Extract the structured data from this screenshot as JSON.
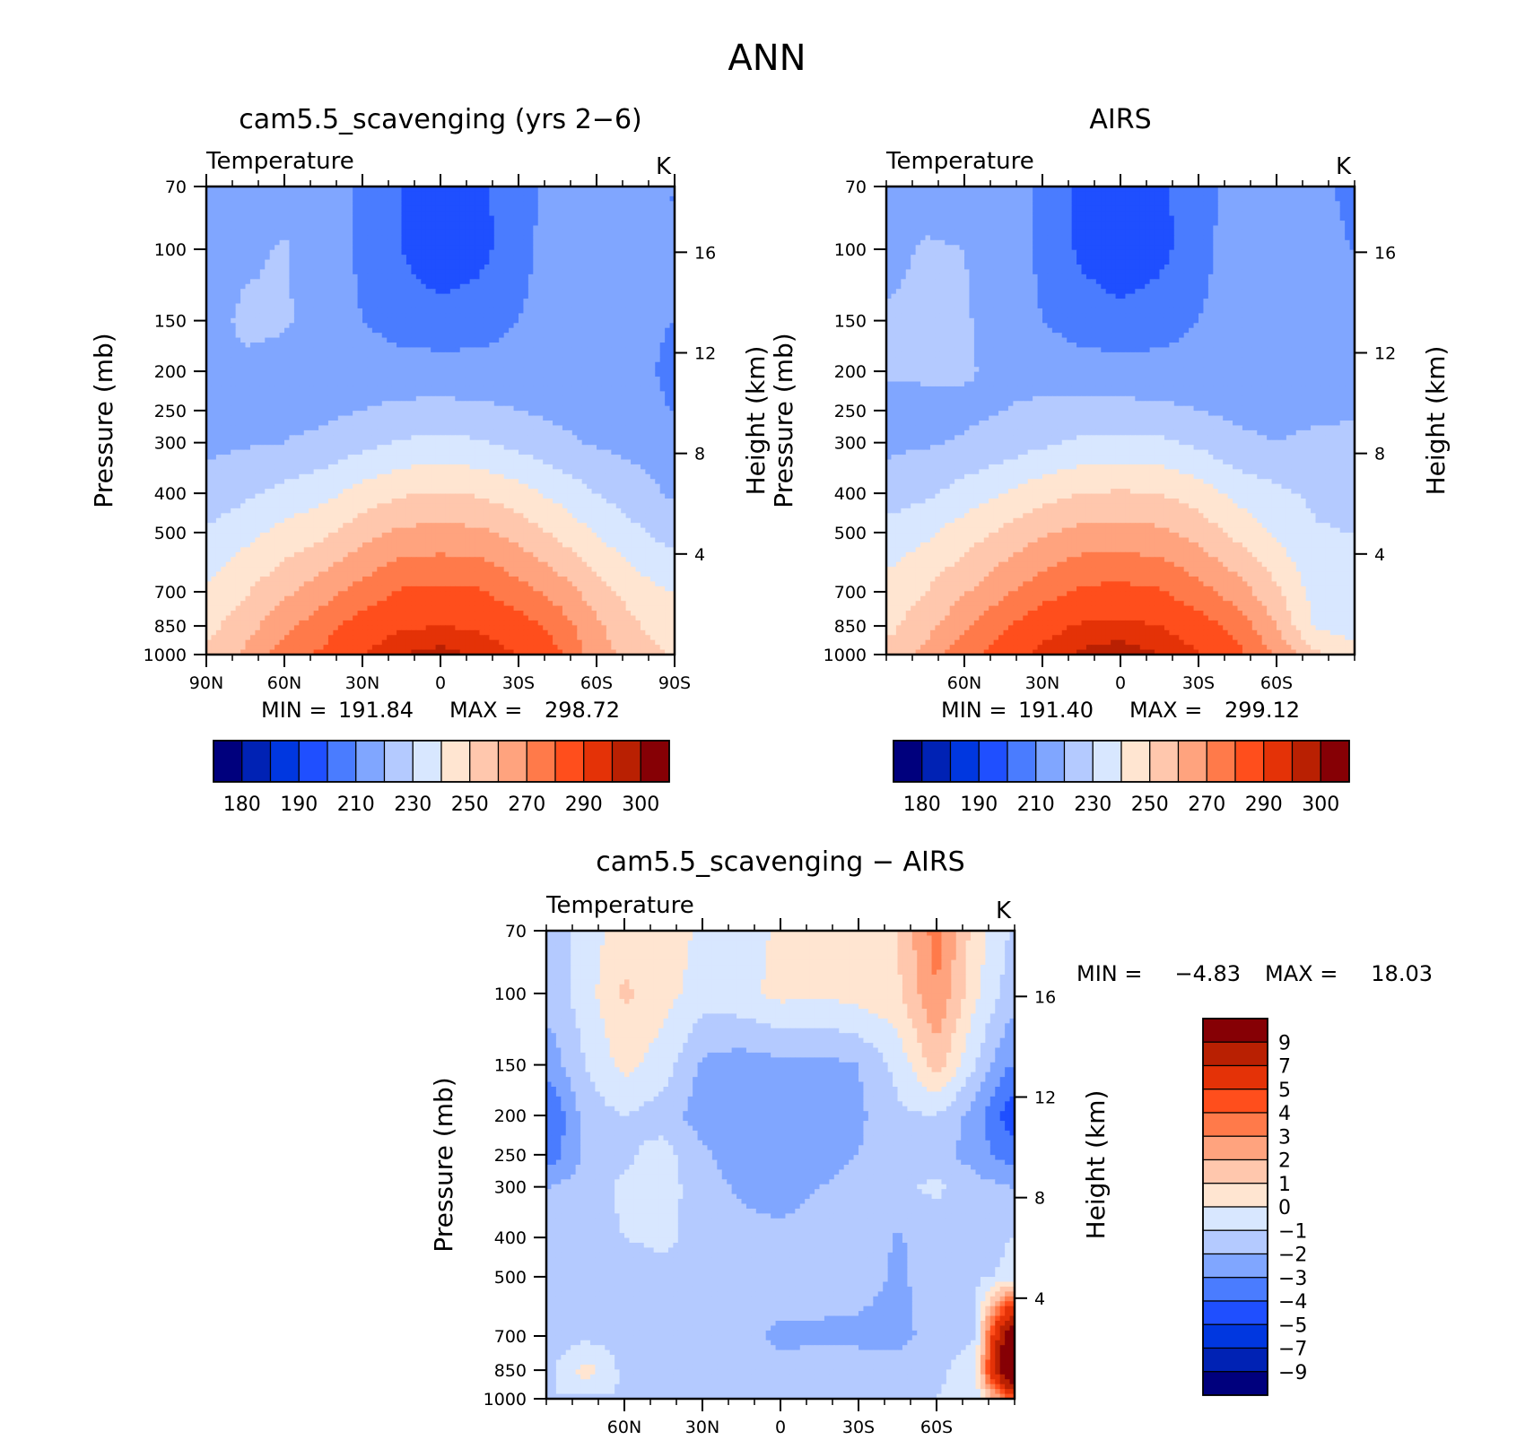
{
  "figure": {
    "title": "ANN"
  },
  "chart_data": [
    {
      "type": "heatmap",
      "title": "cam5.5_scavenging (yrs 2−6)",
      "variable": "Temperature",
      "units": "K",
      "ylabel": "Pressure (mb)",
      "y2label": "Height (km)",
      "pressure_ticks": [
        "70",
        "100",
        "150",
        "200",
        "250",
        "300",
        "400",
        "500",
        "700",
        "850",
        "1000"
      ],
      "height_ticks": [
        "16",
        "12",
        "8",
        "4"
      ],
      "lat_ticks": [
        "90N",
        "60N",
        "30N",
        "0",
        "30S",
        "60S",
        "90S"
      ],
      "lat_range": [
        90,
        -90
      ],
      "stats": {
        "min_label": "MIN =",
        "min": "191.84",
        "max_label": "MAX =",
        "max": "298.72"
      },
      "colorbar_levels": [
        175,
        180,
        185,
        190,
        200,
        210,
        220,
        230,
        240,
        250,
        260,
        270,
        280,
        290,
        295,
        300
      ],
      "colorbar_labels": [
        "180",
        "190",
        "210",
        "230",
        "250",
        "270",
        "290",
        "300"
      ],
      "field": {
        "lats": [
          88,
          75,
          60,
          45,
          30,
          15,
          0,
          -15,
          -30,
          -45,
          -60,
          -75,
          -88
        ],
        "levels": [
          70,
          100,
          150,
          200,
          250,
          300,
          400,
          500,
          700,
          850,
          1000
        ],
        "values": [
          [
            215,
            215,
            215,
            215,
            208,
            200,
            196,
            198,
            205,
            215,
            216,
            216,
            210
          ],
          [
            216,
            218,
            221,
            215,
            208,
            200,
            193,
            197,
            206,
            216,
            219,
            215,
            210
          ],
          [
            217,
            222,
            221,
            216,
            210,
            205,
            204,
            205,
            210,
            215,
            218,
            214,
            210
          ],
          [
            217,
            218,
            217,
            217,
            216,
            215,
            214,
            214,
            215,
            216,
            216,
            213,
            208
          ],
          [
            217,
            217,
            218,
            218,
            220,
            222,
            223,
            222,
            220,
            218,
            217,
            214,
            210
          ],
          [
            218,
            219,
            220,
            222,
            227,
            231,
            233,
            231,
            227,
            222,
            219,
            217,
            215
          ],
          [
            224,
            228,
            233,
            237,
            244,
            249,
            250,
            249,
            244,
            237,
            230,
            224,
            219
          ],
          [
            232,
            237,
            243,
            248,
            256,
            262,
            263,
            262,
            256,
            248,
            239,
            232,
            226
          ],
          [
            242,
            249,
            258,
            266,
            274,
            281,
            282,
            281,
            274,
            266,
            255,
            245,
            240
          ],
          [
            248,
            256,
            267,
            276,
            285,
            289,
            290,
            289,
            285,
            276,
            262,
            251,
            245
          ],
          [
            252,
            262,
            275,
            282,
            290,
            295,
            297,
            294,
            290,
            282,
            265,
            255,
            250
          ]
        ]
      }
    },
    {
      "type": "heatmap",
      "title": "AIRS",
      "variable": "Temperature",
      "units": "K",
      "ylabel": "Pressure (mb)",
      "y2label": "Height (km)",
      "pressure_ticks": [
        "70",
        "100",
        "150",
        "200",
        "250",
        "300",
        "400",
        "500",
        "700",
        "850",
        "1000"
      ],
      "height_ticks": [
        "16",
        "12",
        "8",
        "4"
      ],
      "lat_ticks": [
        "60N",
        "30N",
        "0",
        "30S",
        "60S"
      ],
      "lat_range": [
        90,
        -90
      ],
      "stats": {
        "min_label": "MIN =",
        "min": "191.40",
        "max_label": "MAX =",
        "max": "299.12"
      },
      "colorbar_levels": [
        175,
        180,
        185,
        190,
        200,
        210,
        220,
        230,
        240,
        250,
        260,
        270,
        280,
        290,
        295,
        300
      ],
      "colorbar_labels": [
        "180",
        "190",
        "210",
        "230",
        "250",
        "270",
        "290",
        "300"
      ],
      "field": {
        "lats": [
          88,
          75,
          60,
          45,
          30,
          15,
          0,
          -15,
          -30,
          -45,
          -60,
          -75,
          -88
        ],
        "levels": [
          70,
          100,
          150,
          200,
          250,
          300,
          400,
          500,
          700,
          850,
          1000
        ],
        "values": [
          [
            215,
            216,
            215,
            215,
            208,
            198,
            196,
            198,
            205,
            215,
            216,
            212,
            208
          ],
          [
            218,
            221,
            220,
            215,
            208,
            198,
            193,
            197,
            206,
            216,
            219,
            215,
            210
          ],
          [
            221,
            222,
            221,
            216,
            210,
            205,
            203,
            205,
            210,
            215,
            218,
            215,
            212
          ],
          [
            221,
            222,
            221,
            218,
            216,
            215,
            214,
            214,
            215,
            216,
            217,
            216,
            216
          ],
          [
            216,
            216,
            218,
            220,
            222,
            223,
            223,
            222,
            220,
            218,
            217,
            218,
            219
          ],
          [
            218,
            219,
            221,
            224,
            228,
            232,
            233,
            232,
            228,
            222,
            220,
            222,
            222
          ],
          [
            225,
            228,
            234,
            240,
            246,
            250,
            251,
            250,
            245,
            237,
            232,
            228,
            226
          ],
          [
            234,
            238,
            245,
            252,
            259,
            263,
            264,
            262,
            256,
            247,
            238,
            231,
            230
          ],
          [
            244,
            250,
            259,
            268,
            276,
            282,
            283,
            281,
            274,
            265,
            252,
            236,
            234
          ],
          [
            248,
            256,
            268,
            279,
            287,
            291,
            292,
            290,
            285,
            276,
            260,
            238,
            236
          ],
          [
            254,
            264,
            276,
            285,
            292,
            296,
            298,
            295,
            291,
            283,
            268,
            252,
            245
          ]
        ]
      }
    },
    {
      "type": "heatmap",
      "title": "cam5.5_scavenging − AIRS",
      "variable": "Temperature",
      "units": "K",
      "ylabel": "Pressure (mb)",
      "y2label": "Height (km)",
      "pressure_ticks": [
        "70",
        "100",
        "150",
        "200",
        "250",
        "300",
        "400",
        "500",
        "700",
        "850",
        "1000"
      ],
      "height_ticks": [
        "16",
        "12",
        "8",
        "4"
      ],
      "lat_ticks": [
        "60N",
        "30N",
        "0",
        "30S",
        "60S"
      ],
      "lat_range": [
        90,
        -90
      ],
      "stats": {
        "min_label": "MIN =",
        "min": "−4.83",
        "max_label": "MAX =",
        "max": "18.03"
      },
      "colorbar_levels": [
        -10,
        -9,
        -7,
        -5,
        -4,
        -3,
        -2,
        -1,
        0,
        1,
        2,
        3,
        4,
        5,
        7,
        9,
        10
      ],
      "colorbar_labels": [
        "9",
        "7",
        "5",
        "4",
        "3",
        "2",
        "1",
        "0",
        "−1",
        "−2",
        "−3",
        "−4",
        "−5",
        "−7",
        "−9"
      ],
      "field": {
        "lats": [
          88,
          75,
          60,
          45,
          30,
          15,
          0,
          -15,
          -30,
          -45,
          -60,
          -75,
          -88
        ],
        "levels": [
          70,
          100,
          150,
          200,
          250,
          300,
          400,
          500,
          700,
          850,
          1000
        ],
        "values": [
          [
            -1.5,
            -0.5,
            0.5,
            0.6,
            -0.2,
            -0.5,
            0.2,
            0.3,
            0.1,
            1.0,
            3.5,
            0.5,
            -1.0
          ],
          [
            -1.5,
            -0.5,
            1.2,
            0.4,
            -0.5,
            -0.3,
            0.3,
            0.1,
            0.4,
            0.8,
            3.0,
            0.2,
            -1.5
          ],
          [
            -2.5,
            -1.0,
            0.3,
            -0.5,
            -2.2,
            -2.5,
            -2.3,
            -2.3,
            -2.0,
            -0.7,
            1.5,
            -1.0,
            -3.0
          ],
          [
            -4.0,
            -1.5,
            -1.0,
            -1.5,
            -2.5,
            -2.6,
            -2.6,
            -2.5,
            -2.2,
            -1.2,
            -1.0,
            -2.5,
            -4.5
          ],
          [
            -3.5,
            -1.8,
            -1.2,
            -0.6,
            -1.8,
            -2.6,
            -2.6,
            -2.5,
            -2.0,
            -1.5,
            -1.6,
            -2.5,
            -3.5
          ],
          [
            -2.0,
            -1.5,
            -0.8,
            -0.6,
            -1.5,
            -2.2,
            -2.4,
            -2.0,
            -1.6,
            -1.2,
            -0.8,
            -1.6,
            -2.0
          ],
          [
            -1.2,
            -1.3,
            -1.0,
            -0.8,
            -1.3,
            -1.6,
            -1.8,
            -1.5,
            -1.3,
            -2.1,
            -1.5,
            -1.5,
            -1.0
          ],
          [
            -1.0,
            -1.3,
            -1.5,
            -1.3,
            -1.5,
            -1.4,
            -1.2,
            -1.5,
            -1.5,
            -2.2,
            -1.5,
            -1.2,
            -0.8
          ],
          [
            -1.5,
            -1.3,
            -1.4,
            -1.8,
            -1.8,
            -1.6,
            -2.3,
            -2.2,
            -2.3,
            -2.4,
            -1.5,
            -1.0,
            11.0
          ],
          [
            -1.2,
            0.5,
            -1.3,
            -1.5,
            -1.4,
            -1.6,
            -1.6,
            -1.4,
            -1.4,
            -1.5,
            -1.2,
            -0.5,
            13.0
          ],
          [
            -1.0,
            -1.2,
            -1.0,
            -1.3,
            -1.2,
            -1.3,
            -1.1,
            -1.0,
            -1.2,
            -1.1,
            -1.0,
            -0.5,
            4.0
          ]
        ]
      }
    }
  ],
  "colors": {
    "abs_palette": [
      "#00007d",
      "#0022b4",
      "#0037e0",
      "#1f4fff",
      "#4a7cff",
      "#80a6ff",
      "#b4caff",
      "#d8e7ff",
      "#ffe5d1",
      "#ffc7ad",
      "#ffa37e",
      "#ff7a4a",
      "#ff4e1c",
      "#e43207",
      "#b92002",
      "#860005"
    ],
    "diff_palette": [
      "#00007d",
      "#0022b4",
      "#0037e0",
      "#1f4fff",
      "#4a7cff",
      "#80a6ff",
      "#b4caff",
      "#d8e7ff",
      "#ffe5d1",
      "#ffc7ad",
      "#ffa37e",
      "#ff7a4a",
      "#ff4e1c",
      "#e43207",
      "#b92002",
      "#860005"
    ]
  }
}
